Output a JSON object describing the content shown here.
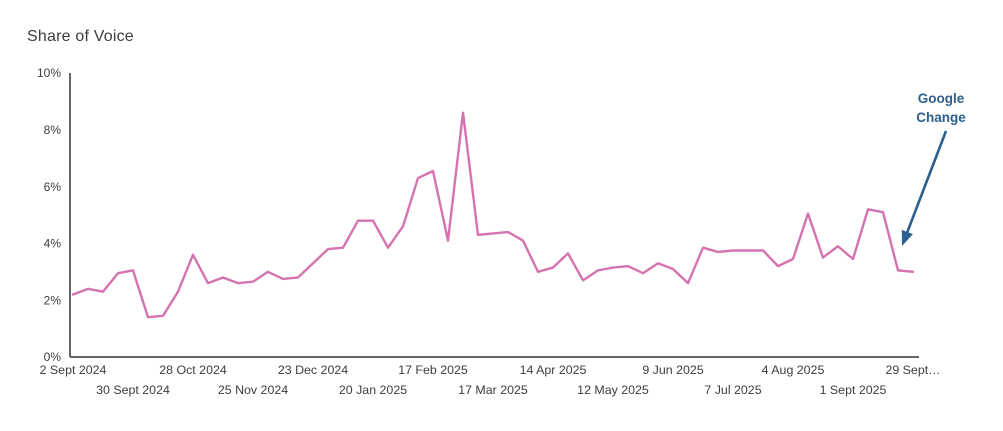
{
  "title": "Share of Voice",
  "annotation": {
    "lines": [
      "Google",
      "Change"
    ],
    "color": "#2b5f8e"
  },
  "colors": {
    "line": "#d473b0",
    "axis": "#333333",
    "tick_text": "#3d3d3d",
    "title_text": "#3d3d3d"
  },
  "chart_data": {
    "type": "line",
    "title": "Share of Voice",
    "xlabel": "",
    "ylabel": "",
    "ylim": [
      0,
      10
    ],
    "y_unit": "%",
    "grid": false,
    "legend": false,
    "x_interval": "weekly",
    "x_range": [
      "2 Sept 2024",
      "29 Sept 2025"
    ],
    "y_ticks": [
      {
        "value": 0,
        "label": "0%"
      },
      {
        "value": 2,
        "label": "2%"
      },
      {
        "value": 4,
        "label": "4%"
      },
      {
        "value": 6,
        "label": "6%"
      },
      {
        "value": 8,
        "label": "8%"
      },
      {
        "value": 10,
        "label": "10%"
      }
    ],
    "x_ticks_row1": [
      {
        "index": 0,
        "label": "2 Sept 2024"
      },
      {
        "index": 8,
        "label": "28 Oct 2024"
      },
      {
        "index": 16,
        "label": "23 Dec 2024"
      },
      {
        "index": 24,
        "label": "17 Feb 2025"
      },
      {
        "index": 32,
        "label": "14 Apr 2025"
      },
      {
        "index": 40,
        "label": "9 Jun 2025"
      },
      {
        "index": 48,
        "label": "4 Aug 2025"
      },
      {
        "index": 56,
        "label": "29 Sept…"
      }
    ],
    "x_ticks_row2": [
      {
        "index": 4,
        "label": "30 Sept 2024"
      },
      {
        "index": 12,
        "label": "25 Nov 2024"
      },
      {
        "index": 20,
        "label": "20 Jan 2025"
      },
      {
        "index": 28,
        "label": "17 Mar 2025"
      },
      {
        "index": 36,
        "label": "12 May 2025"
      },
      {
        "index": 44,
        "label": "7 Jul 2025"
      },
      {
        "index": 52,
        "label": "1 Sept 2025"
      }
    ],
    "series": [
      {
        "name": "Share of Voice",
        "color": "#d473b0",
        "values": [
          2.2,
          2.4,
          2.3,
          2.95,
          3.05,
          1.4,
          1.45,
          2.3,
          3.6,
          2.6,
          2.8,
          2.6,
          2.65,
          3.0,
          2.75,
          2.8,
          3.3,
          3.8,
          3.85,
          4.8,
          4.8,
          3.85,
          4.6,
          6.3,
          6.55,
          4.1,
          8.6,
          4.3,
          4.35,
          4.4,
          4.1,
          3.0,
          3.15,
          3.65,
          2.7,
          3.05,
          3.15,
          3.2,
          2.95,
          3.3,
          3.1,
          2.6,
          3.85,
          3.7,
          3.75,
          3.75,
          3.75,
          3.2,
          3.45,
          5.05,
          3.5,
          3.9,
          3.45,
          5.2,
          5.1,
          3.05,
          3.0
        ]
      }
    ],
    "annotations": [
      {
        "text": "Google Change",
        "anchor_value_pct": 4.0,
        "anchor_date_near": "29 Sept 2025"
      }
    ]
  }
}
